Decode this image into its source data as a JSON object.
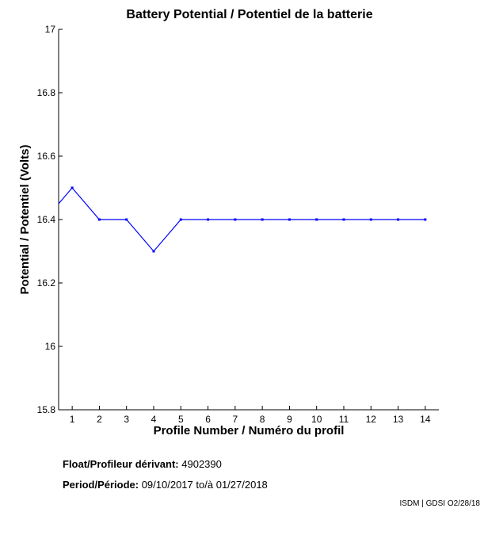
{
  "chart_data": {
    "type": "line",
    "title": "Battery Potential / Potentiel de la batterie",
    "xlabel": "Profile Number / Numéro du profil",
    "ylabel": "Potential / Potentiel (Volts)",
    "x": [
      0.5,
      1,
      2,
      3,
      4,
      5,
      6,
      7,
      8,
      9,
      10,
      11,
      12,
      13,
      14
    ],
    "y": [
      16.45,
      16.5,
      16.4,
      16.4,
      16.3,
      16.4,
      16.4,
      16.4,
      16.4,
      16.4,
      16.4,
      16.4,
      16.4,
      16.4,
      16.4
    ],
    "xticks": [
      1,
      2,
      3,
      4,
      5,
      6,
      7,
      8,
      9,
      10,
      11,
      12,
      13,
      14
    ],
    "yticks": [
      15.8,
      16,
      16.2,
      16.4,
      16.6,
      16.8,
      17
    ],
    "ytick_labels": [
      "15.8",
      "16",
      "16.2",
      "16.4",
      "16.6",
      "16.8",
      "17"
    ],
    "xlim": [
      0.5,
      14.5
    ],
    "ylim": [
      15.8,
      17
    ],
    "grid": false,
    "line_color": "#0000ff"
  },
  "info": {
    "float_label": "Float/Profileur dérivant:",
    "float_value": "4902390",
    "period_label": "Period/Période:",
    "period_start": "09/10/2017",
    "period_sep": "to/à",
    "period_end": "01/27/2018"
  },
  "credit": "ISDM | GDSI O2/28/18"
}
